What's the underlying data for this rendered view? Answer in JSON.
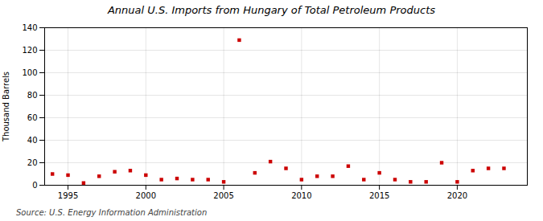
{
  "chart_data": {
    "type": "scatter",
    "title": "Annual U.S. Imports from Hungary of Total Petroleum Products",
    "ylabel": "Thousand Barrels",
    "source": "Source: U.S. Energy Information Administration",
    "x": [
      1994,
      1995,
      1996,
      1997,
      1998,
      1999,
      2000,
      2001,
      2002,
      2003,
      2004,
      2005,
      2006,
      2007,
      2008,
      2009,
      2010,
      2011,
      2012,
      2013,
      2014,
      2015,
      2016,
      2017,
      2018,
      2019,
      2020,
      2021,
      2022,
      2023
    ],
    "values": [
      10,
      9,
      2,
      8,
      12,
      13,
      9,
      5,
      6,
      5,
      5,
      3,
      129,
      11,
      21,
      15,
      5,
      8,
      8,
      17,
      5,
      11,
      5,
      3,
      3,
      20,
      3,
      13,
      15,
      15
    ],
    "color": "#cc0000",
    "marker": "square",
    "xlim": [
      1993.5,
      2024.5
    ],
    "xticks": [
      1995,
      2000,
      2005,
      2010,
      2015,
      2020
    ],
    "ylim": [
      0,
      140
    ],
    "yticks": [
      0,
      20,
      40,
      60,
      80,
      100,
      120,
      140
    ],
    "grid": true
  }
}
